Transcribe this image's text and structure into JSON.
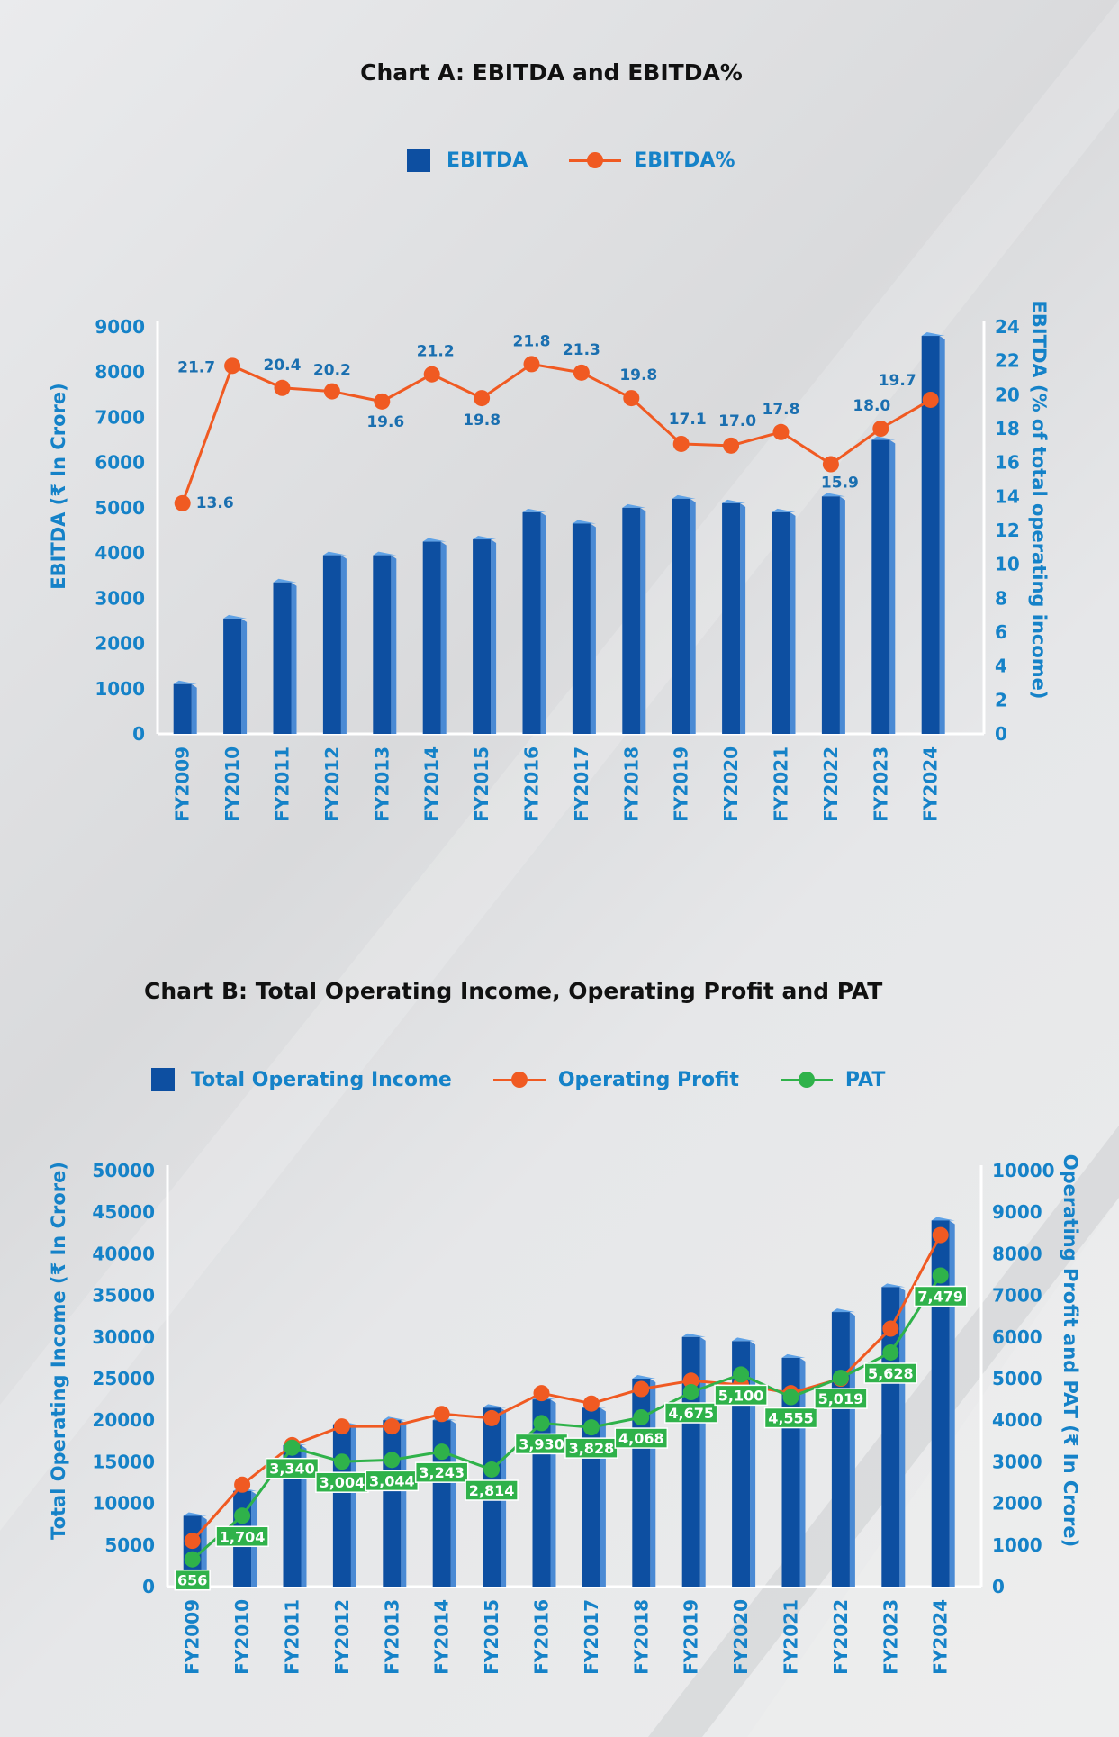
{
  "colors": {
    "bar": "#0d4fa1",
    "bar_side": "#4a8ad4",
    "bar_top": "#5fa2e6",
    "orange": "#f05a22",
    "green": "#2fb24a",
    "label_blue": "#1582c8"
  },
  "chart_a": {
    "title": "Chart A: EBITDA and EBITDA%",
    "legend": {
      "bar_label": "EBITDA",
      "line_label": "EBITDA%"
    },
    "y_left_title": "EBITDA (₹ In Crore)",
    "y_right_title": "EBITDA (% of total operating income)"
  },
  "chart_b": {
    "title": "Chart B: Total Operating Income, Operating Profit and PAT",
    "legend": {
      "bar_label": "Total Operating Income",
      "line1_label": "Operating Profit",
      "line2_label": "PAT"
    },
    "y_left_title": "Total Operating Income (₹ In Crore)",
    "y_right_title": "Operating Profit and PAT (₹ In Crore)"
  },
  "chart_data": [
    {
      "type": "bar",
      "title": "Chart A: EBITDA and EBITDA%",
      "categories": [
        "FY2009",
        "FY2010",
        "FY2011",
        "FY2012",
        "FY2013",
        "FY2014",
        "FY2015",
        "FY2016",
        "FY2017",
        "FY2018",
        "FY2019",
        "FY2020",
        "FY2021",
        "FY2022",
        "FY2023",
        "FY2024"
      ],
      "series": [
        {
          "name": "EBITDA",
          "type": "bar",
          "axis": "left",
          "values": [
            1100,
            2550,
            3350,
            3950,
            3950,
            4250,
            4300,
            4900,
            4650,
            5000,
            5200,
            5100,
            4900,
            5250,
            6500,
            8800
          ]
        },
        {
          "name": "EBITDA%",
          "type": "line",
          "axis": "right",
          "values": [
            13.6,
            21.7,
            20.4,
            20.2,
            19.6,
            21.2,
            19.8,
            21.8,
            21.3,
            19.8,
            17.1,
            17.0,
            17.8,
            15.9,
            18.0,
            19.7
          ],
          "labels": [
            "13.6",
            "21.7",
            "20.4",
            "20.2",
            "19.6",
            "21.2",
            "19.8",
            "21.8",
            "21.3",
            "19.8",
            "17.1",
            "17.0",
            "17.8",
            "15.9",
            "18.0",
            "19.7"
          ]
        }
      ],
      "ylabel": "EBITDA (₹ In Crore)",
      "ylabel_right": "EBITDA (% of total operating income)",
      "ylim": [
        0,
        9000
      ],
      "yticks": [
        "0",
        "1000",
        "2000",
        "3000",
        "4000",
        "5000",
        "6000",
        "7000",
        "8000",
        "9000"
      ],
      "ylim_right": [
        0,
        24
      ],
      "yticks_right": [
        "0",
        "2",
        "4",
        "6",
        "8",
        "10",
        "12",
        "14",
        "16",
        "18",
        "20",
        "22",
        "24"
      ],
      "legend_position": "top-center",
      "grid": false
    },
    {
      "type": "bar",
      "title": "Chart B: Total Operating Income, Operating Profit and PAT",
      "categories": [
        "FY2009",
        "FY2010",
        "FY2011",
        "FY2012",
        "FY2013",
        "FY2014",
        "FY2015",
        "FY2016",
        "FY2017",
        "FY2018",
        "FY2019",
        "FY2020",
        "FY2021",
        "FY2022",
        "FY2023",
        "FY2024"
      ],
      "series": [
        {
          "name": "Total Operating Income",
          "type": "bar",
          "axis": "left",
          "values": [
            8500,
            11500,
            17000,
            19500,
            20000,
            20000,
            21500,
            22500,
            21500,
            25000,
            30000,
            29500,
            27500,
            33000,
            36000,
            44000
          ]
        },
        {
          "name": "Operating Profit",
          "type": "line",
          "axis": "right",
          "values": [
            1100,
            2450,
            3400,
            3850,
            3850,
            4150,
            4050,
            4650,
            4400,
            4750,
            4950,
            4850,
            4650,
            5000,
            6200,
            8450
          ]
        },
        {
          "name": "PAT",
          "type": "line",
          "axis": "right",
          "values": [
            656,
            1704,
            3340,
            3004,
            3044,
            3243,
            2814,
            3930,
            3828,
            4068,
            4675,
            5100,
            4555,
            5019,
            5628,
            7479
          ],
          "labels": [
            "656",
            "1,704",
            "3,340",
            "3,004",
            "3,044",
            "3,243",
            "2,814",
            "3,930",
            "3,828",
            "4,068",
            "4,675",
            "5,100",
            "4,555",
            "5,019",
            "5,628",
            "7,479"
          ]
        }
      ],
      "ylabel": "Total Operating Income (₹ In Crore)",
      "ylabel_right": "Operating Profit and PAT (₹ In Crore)",
      "ylim": [
        0,
        50000
      ],
      "yticks": [
        "0",
        "5000",
        "10000",
        "15000",
        "20000",
        "25000",
        "30000",
        "35000",
        "40000",
        "45000",
        "50000"
      ],
      "ylim_right": [
        0,
        10000
      ],
      "yticks_right": [
        "0",
        "1000",
        "2000",
        "3000",
        "4000",
        "5000",
        "6000",
        "7000",
        "8000",
        "9000",
        "10000"
      ],
      "legend_position": "top-center",
      "grid": false
    }
  ]
}
